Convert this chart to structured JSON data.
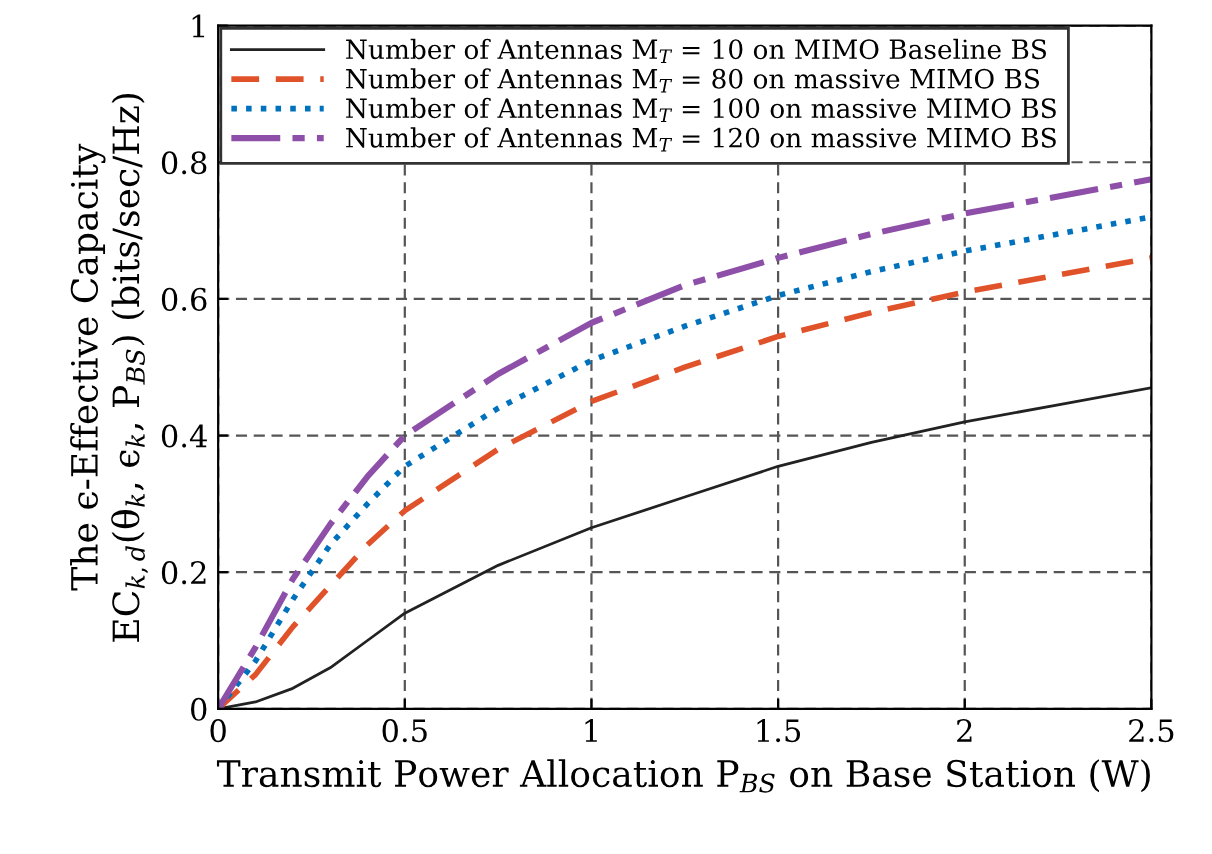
{
  "chart_data": {
    "type": "line",
    "xlabel": "Transmit Power Allocation P$_{BS}$ on Base Station (W)",
    "ylabel": "The ϵ-Effective Capacity\nEC$_{k,d}$(θ$_{k}$, ϵ$_{k}$, P$_{BS}$) (bits/sec/Hz)",
    "x": [
      0,
      0.1,
      0.2,
      0.3,
      0.4,
      0.5,
      0.75,
      1,
      1.25,
      1.5,
      1.75,
      2,
      2.25,
      2.5
    ],
    "series": [
      {
        "name": "Number of Antennas M$_{T}$ = 10 on MIMO Baseline BS",
        "color": "#222222",
        "line_style": "solid",
        "values": [
          0,
          0.01,
          0.03,
          0.06,
          0.1,
          0.14,
          0.21,
          0.265,
          0.31,
          0.355,
          0.39,
          0.42,
          0.445,
          0.47
        ]
      },
      {
        "name": "Number of Antennas M$_{T}$ = 80 on massive MIMO BS",
        "color": "#e0522a",
        "line_style": "dashed",
        "values": [
          0,
          0.05,
          0.12,
          0.18,
          0.24,
          0.29,
          0.38,
          0.45,
          0.5,
          0.545,
          0.58,
          0.61,
          0.635,
          0.66
        ]
      },
      {
        "name": "Number of Antennas M$_{T}$ = 100 on massive MIMO BS",
        "color": "#0072bd",
        "line_style": "dotted",
        "values": [
          0,
          0.07,
          0.16,
          0.24,
          0.3,
          0.355,
          0.44,
          0.51,
          0.56,
          0.605,
          0.64,
          0.67,
          0.695,
          0.72
        ]
      },
      {
        "name": "Number of Antennas M$_{T}$ = 120 on massive MIMO BS",
        "color": "#8e4fa8",
        "line_style": "dashdot",
        "values": [
          0,
          0.09,
          0.19,
          0.27,
          0.34,
          0.4,
          0.49,
          0.565,
          0.62,
          0.66,
          0.695,
          0.725,
          0.75,
          0.775
        ]
      }
    ],
    "xlim": [
      0,
      2.5
    ],
    "xticks": [
      0,
      0.5,
      1,
      1.5,
      2,
      2.5
    ],
    "ylim": [
      0,
      1
    ],
    "yticks": [
      0,
      0.2,
      0.4,
      0.6,
      0.8,
      1
    ],
    "grid": true,
    "legend": "top left",
    "marker": "none"
  }
}
